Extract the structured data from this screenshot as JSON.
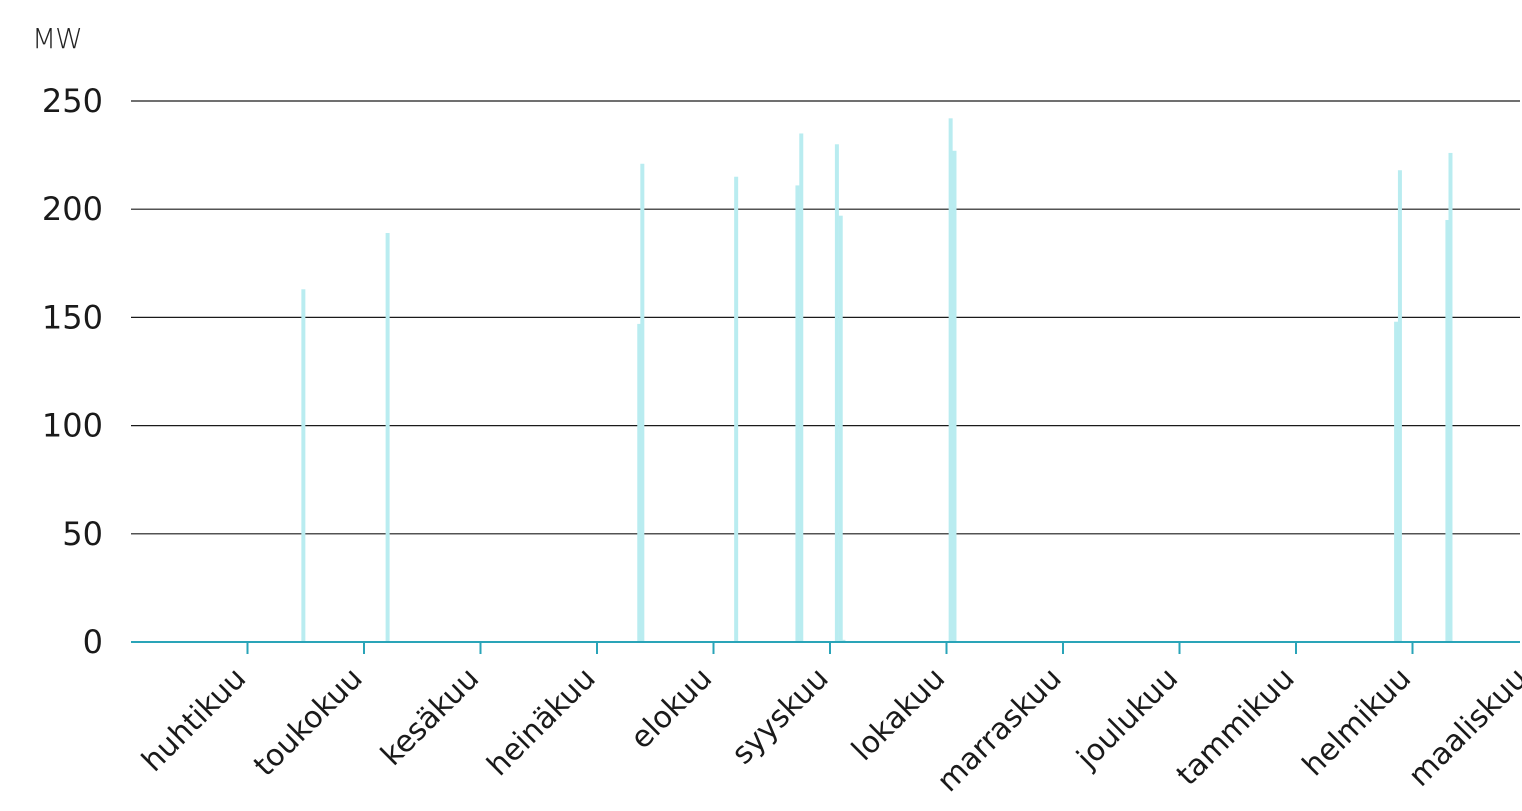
{
  "chart_data": {
    "type": "bar",
    "title": "",
    "xlabel": "",
    "ylabel": "MW",
    "ylim": [
      0,
      250
    ],
    "yticks": [
      0,
      50,
      100,
      150,
      200,
      250
    ],
    "grid": "horizontal",
    "months": [
      "huhtikuu",
      "toukokuu",
      "kesäkuu",
      "heinäkuu",
      "elokuu",
      "syyskuu",
      "lokakuu",
      "marraskuu",
      "joulukuu",
      "tammikuu",
      "helmikuu",
      "maaliskuu"
    ],
    "days_in_period": 365,
    "series": [
      {
        "values": [
          {
            "day": 45.0,
            "value": 163
          },
          {
            "day": 67.0,
            "value": 189
          },
          {
            "day": 132.7,
            "value": 147
          },
          {
            "day": 133.5,
            "value": 221
          },
          {
            "day": 158.0,
            "value": 215
          },
          {
            "day": 174.0,
            "value": 211
          },
          {
            "day": 175.0,
            "value": 235
          },
          {
            "day": 184.3,
            "value": 230
          },
          {
            "day": 185.3,
            "value": 197
          },
          {
            "day": 186.0,
            "value": 1
          },
          {
            "day": 214.0,
            "value": 242
          },
          {
            "day": 215.0,
            "value": 227
          },
          {
            "day": 330.3,
            "value": 148
          },
          {
            "day": 331.3,
            "value": 218
          },
          {
            "day": 343.7,
            "value": 195
          },
          {
            "day": 344.5,
            "value": 226
          }
        ]
      }
    ]
  },
  "colors": {
    "bar": "#b9ecf0",
    "baseline": "#2aa4b8",
    "gridline": "#1a1a1a",
    "text": "#1a1a1a"
  }
}
